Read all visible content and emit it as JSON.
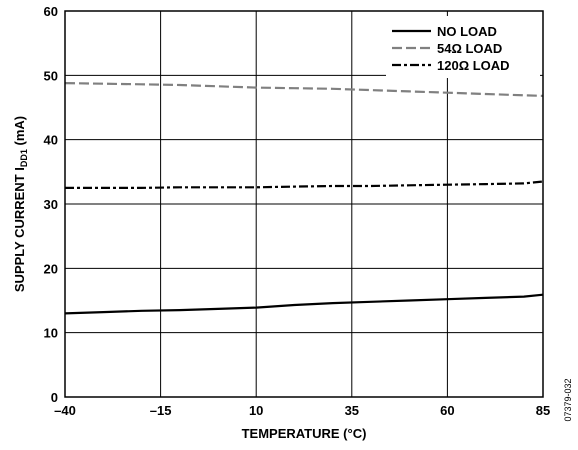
{
  "chart_data": {
    "type": "line",
    "title": "",
    "xlabel": "TEMPERATURE (°C)",
    "ylabel": {
      "main": "SUPPLY CURRENT I",
      "sub": "DD1",
      "suffix": " (mA)"
    },
    "xlim": [
      -40,
      85
    ],
    "ylim": [
      0,
      60
    ],
    "x_ticks": [
      "–40",
      "–15",
      "10",
      "35",
      "60",
      "85"
    ],
    "y_ticks": [
      "0",
      "10",
      "20",
      "30",
      "40",
      "50",
      "60"
    ],
    "grid": true,
    "legend_position": "top-right",
    "series": [
      {
        "name": "NO LOAD",
        "style": "solid",
        "color": "#000000",
        "x": [
          -40,
          -30,
          -20,
          -10,
          0,
          10,
          20,
          30,
          40,
          50,
          60,
          70,
          80,
          85
        ],
        "y": [
          13.0,
          13.2,
          13.4,
          13.5,
          13.7,
          13.9,
          14.3,
          14.6,
          14.8,
          15.0,
          15.2,
          15.4,
          15.6,
          15.9
        ]
      },
      {
        "name": "54Ω LOAD",
        "style": "dashed",
        "color": "#808080",
        "x": [
          -40,
          -30,
          -20,
          -10,
          0,
          10,
          20,
          30,
          40,
          50,
          60,
          70,
          80,
          85
        ],
        "y": [
          48.8,
          48.7,
          48.6,
          48.5,
          48.3,
          48.1,
          48.0,
          47.9,
          47.7,
          47.5,
          47.3,
          47.1,
          46.9,
          46.8
        ]
      },
      {
        "name": "120Ω LOAD",
        "style": "dashdot",
        "color": "#000000",
        "x": [
          -40,
          -30,
          -20,
          -10,
          0,
          10,
          20,
          30,
          40,
          50,
          60,
          70,
          80,
          85
        ],
        "y": [
          32.5,
          32.5,
          32.5,
          32.6,
          32.6,
          32.6,
          32.7,
          32.8,
          32.8,
          32.9,
          33.0,
          33.1,
          33.2,
          33.5
        ]
      }
    ]
  },
  "figure_id": "07379-032"
}
